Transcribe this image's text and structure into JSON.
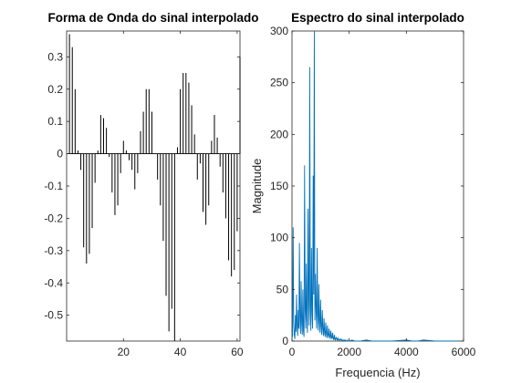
{
  "chart_data": [
    {
      "type": "stem",
      "title": "Forma de Onda do sinal interpolado",
      "xlabel": "",
      "ylabel": "",
      "xlim": [
        0,
        61
      ],
      "ylim": [
        -0.58,
        0.38
      ],
      "xticks": [
        20,
        40,
        60
      ],
      "xtick_labels": [
        "20",
        "40",
        "60"
      ],
      "yticks": [
        0.3,
        0.2,
        0.1,
        0,
        -0.1,
        -0.2,
        -0.3,
        -0.4,
        -0.5
      ],
      "ytick_labels": [
        "0.3",
        "0.2",
        "0.1",
        "0",
        "-0.1",
        "-0.2",
        "-0.3",
        "-0.4",
        "-0.5"
      ],
      "color": "#000000",
      "x": [
        1,
        2,
        3,
        4,
        5,
        6,
        7,
        8,
        9,
        10,
        11,
        12,
        13,
        14,
        15,
        16,
        17,
        18,
        19,
        20,
        21,
        22,
        23,
        24,
        25,
        26,
        27,
        28,
        29,
        30,
        31,
        32,
        33,
        34,
        35,
        36,
        37,
        38,
        39,
        40,
        41,
        42,
        43,
        44,
        45,
        46,
        47,
        48,
        49,
        50,
        51,
        52,
        53,
        54,
        55,
        56,
        57,
        58,
        59,
        60,
        61
      ],
      "y": [
        0.37,
        0.33,
        0.2,
        0.01,
        -0.05,
        -0.29,
        -0.34,
        -0.31,
        -0.23,
        -0.09,
        0.01,
        0.12,
        0.11,
        0.08,
        -0.01,
        -0.12,
        -0.19,
        -0.16,
        -0.06,
        0.04,
        0.01,
        -0.02,
        -0.05,
        -0.11,
        -0.06,
        0.07,
        0.13,
        0.2,
        0.2,
        0.13,
        0.0,
        -0.08,
        -0.16,
        -0.27,
        -0.44,
        -0.55,
        -0.48,
        -0.58,
        0.02,
        0.2,
        0.25,
        0.25,
        0.22,
        0.15,
        0.06,
        -0.08,
        -0.03,
        -0.18,
        -0.22,
        -0.16,
        0.04,
        0.12,
        0.05,
        -0.04,
        -0.12,
        -0.2,
        -0.33,
        -0.38,
        -0.36,
        -0.24,
        0.3
      ]
    },
    {
      "type": "line",
      "title": "Espectro do sinal interpolado",
      "xlabel": "Frequencia (Hz)",
      "ylabel": "Magnitude",
      "xlim": [
        0,
        6000
      ],
      "ylim": [
        0,
        300
      ],
      "xticks": [
        0,
        2000,
        4000,
        6000
      ],
      "xtick_labels": [
        "0",
        "2000",
        "4000",
        "6000"
      ],
      "yticks": [
        0,
        50,
        100,
        150,
        200,
        250,
        300
      ],
      "ytick_labels": [
        "0",
        "50",
        "100",
        "150",
        "200",
        "250",
        "300"
      ],
      "color": "#0072BD",
      "x": [
        0,
        20,
        40,
        60,
        80,
        100,
        120,
        140,
        160,
        180,
        200,
        220,
        240,
        260,
        280,
        300,
        320,
        340,
        360,
        380,
        400,
        420,
        440,
        460,
        480,
        500,
        520,
        540,
        560,
        580,
        600,
        620,
        640,
        660,
        680,
        700,
        720,
        740,
        760,
        780,
        800,
        820,
        840,
        860,
        880,
        900,
        920,
        940,
        960,
        980,
        1000,
        1020,
        1040,
        1060,
        1080,
        1100,
        1120,
        1140,
        1160,
        1180,
        1200,
        1220,
        1240,
        1260,
        1280,
        1300,
        1320,
        1340,
        1360,
        1380,
        1400,
        1420,
        1440,
        1460,
        1480,
        1500,
        1520,
        1540,
        1560,
        1580,
        1600,
        1620,
        1640,
        1660,
        1680,
        1700,
        1720,
        1740,
        1760,
        1780,
        1800,
        1820,
        1840,
        1860,
        1880,
        1900,
        1920,
        1940,
        1960,
        1980,
        2000,
        2100,
        2200,
        2400,
        2600,
        2800,
        3000,
        3500,
        4000,
        4200,
        4400,
        4600,
        5000,
        5500,
        5800
      ],
      "y": [
        8,
        4,
        110,
        18,
        6,
        2,
        25,
        9,
        45,
        14,
        5,
        30,
        12,
        95,
        20,
        7,
        58,
        16,
        6,
        50,
        10,
        4,
        170,
        30,
        12,
        75,
        22,
        8,
        128,
        40,
        15,
        265,
        35,
        10,
        90,
        28,
        12,
        160,
        45,
        300,
        20,
        65,
        30,
        12,
        90,
        25,
        10,
        55,
        20,
        8,
        40,
        15,
        6,
        30,
        12,
        5,
        22,
        8,
        4,
        18,
        7,
        3,
        15,
        6,
        3,
        12,
        5,
        2,
        10,
        4,
        2,
        8,
        3,
        1,
        6,
        2,
        1,
        4,
        2,
        1,
        3,
        1,
        1,
        2,
        1,
        1,
        2,
        1,
        0,
        1,
        1,
        0,
        1,
        0,
        1,
        0,
        0,
        1,
        0,
        0,
        0,
        1,
        0,
        0,
        1,
        0,
        0,
        0,
        1,
        0,
        0,
        1,
        0,
        0,
        0
      ]
    }
  ]
}
